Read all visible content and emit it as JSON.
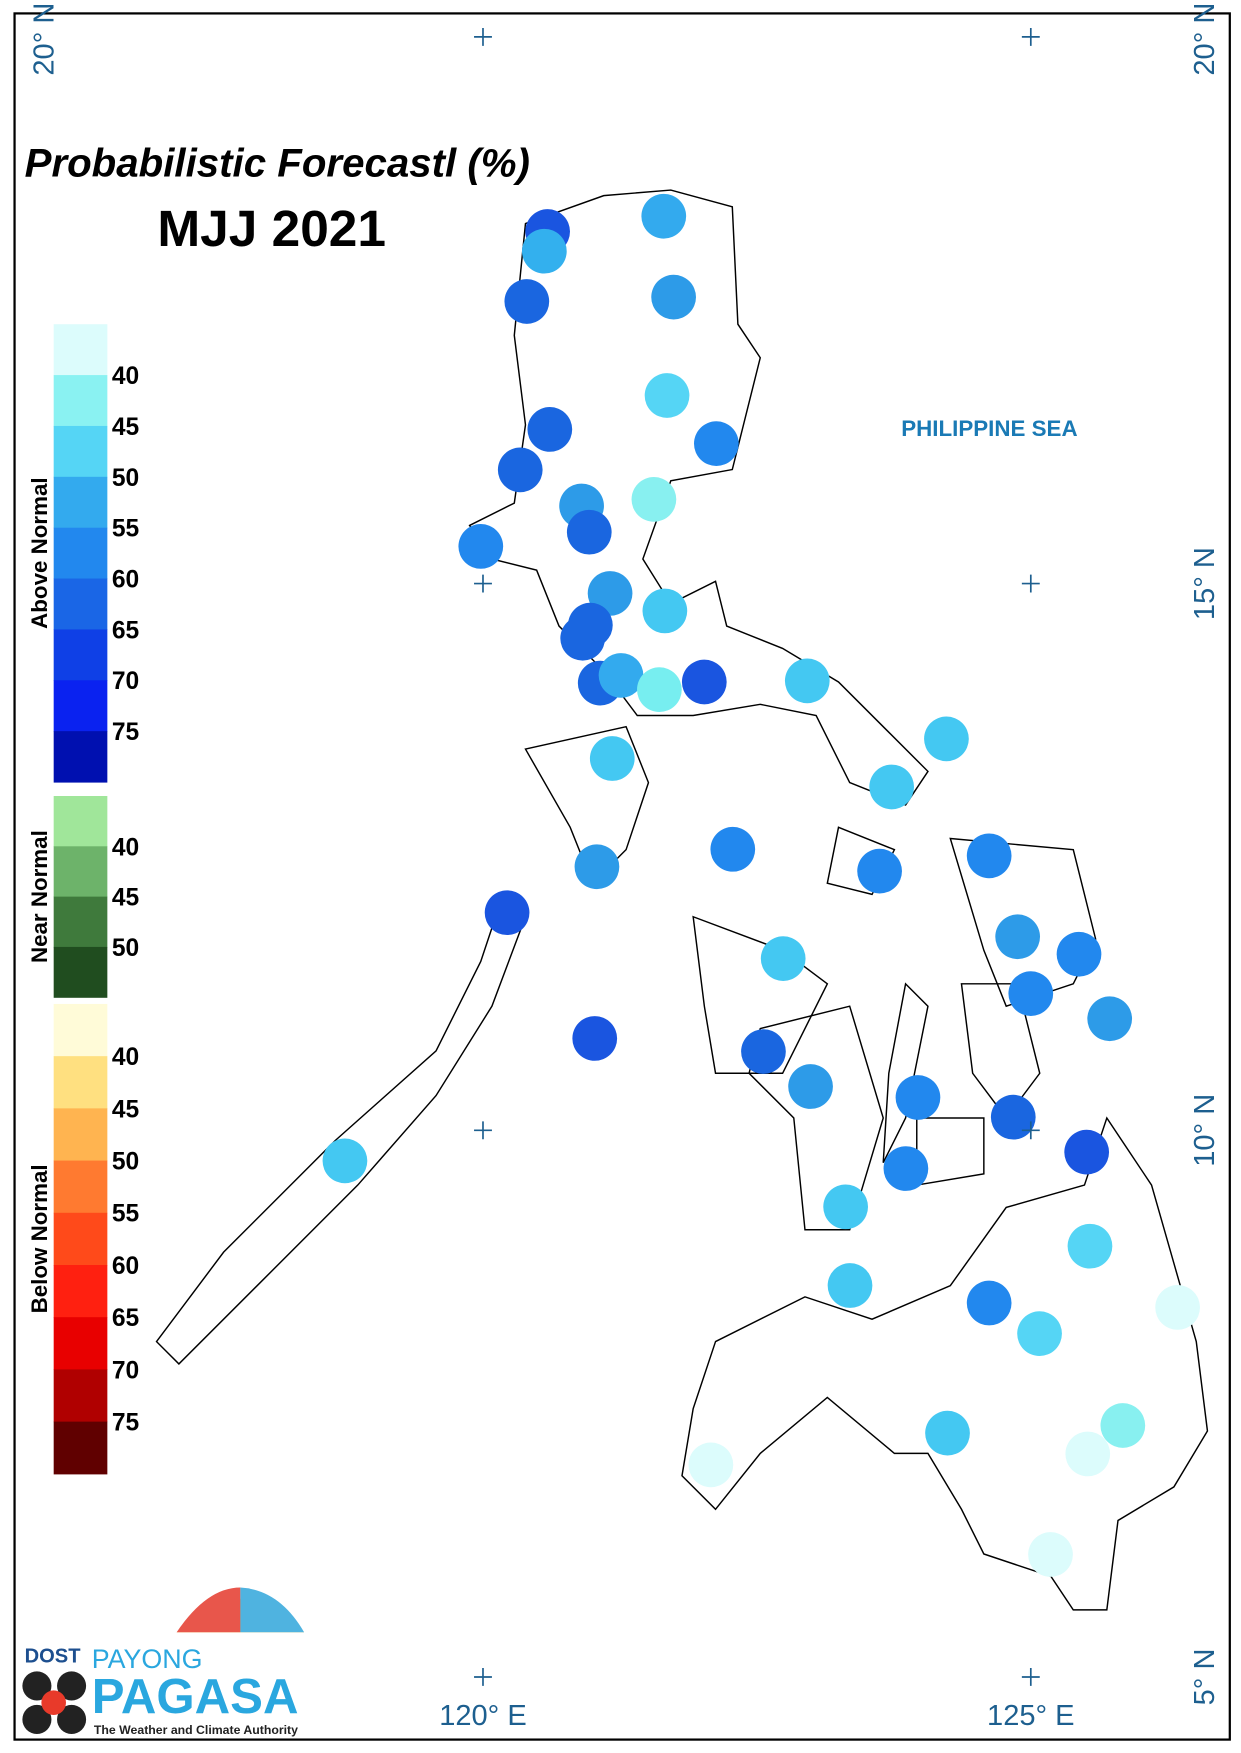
{
  "title": "Probabilistic Forecastl (%)",
  "period": "MJJ 2021",
  "sea_label": "PHILIPPINE SEA",
  "map": {
    "lonticks": [
      {
        "value": 120,
        "label": "120° E"
      },
      {
        "value": 125,
        "label": "125° E"
      }
    ],
    "latticks": [
      {
        "value": 20,
        "label": "20° N"
      },
      {
        "value": 15,
        "label": "15° N"
      },
      {
        "value": 10,
        "label": "10° N"
      },
      {
        "value": 5,
        "label": "5° N"
      }
    ],
    "stations": [
      {
        "lon": 120.59,
        "lat": 18.22,
        "color": "#1a55e0"
      },
      {
        "lon": 120.56,
        "lat": 18.04,
        "color": "#33b0ee"
      },
      {
        "lon": 121.65,
        "lat": 18.36,
        "color": "#33aaee"
      },
      {
        "lon": 120.4,
        "lat": 17.58,
        "color": "#1a66e0"
      },
      {
        "lon": 121.74,
        "lat": 17.62,
        "color": "#2d9be8"
      },
      {
        "lon": 121.68,
        "lat": 16.72,
        "color": "#55d5f5"
      },
      {
        "lon": 120.61,
        "lat": 16.41,
        "color": "#1a66e0"
      },
      {
        "lon": 122.13,
        "lat": 16.28,
        "color": "#2288ee"
      },
      {
        "lon": 120.34,
        "lat": 16.04,
        "color": "#1a66e0"
      },
      {
        "lon": 120.9,
        "lat": 15.71,
        "color": "#2d9be8"
      },
      {
        "lon": 121.56,
        "lat": 15.77,
        "color": "#88f0f0"
      },
      {
        "lon": 120.97,
        "lat": 15.47,
        "color": "#1a66e0"
      },
      {
        "lon": 119.98,
        "lat": 15.34,
        "color": "#2288ee"
      },
      {
        "lon": 121.16,
        "lat": 14.91,
        "color": "#2d9be8"
      },
      {
        "lon": 121.66,
        "lat": 14.75,
        "color": "#44c8f2"
      },
      {
        "lon": 120.98,
        "lat": 14.62,
        "color": "#1a66e0"
      },
      {
        "lon": 120.91,
        "lat": 14.5,
        "color": "#1a66e0"
      },
      {
        "lon": 121.07,
        "lat": 14.09,
        "color": "#1a66e0"
      },
      {
        "lon": 121.26,
        "lat": 14.16,
        "color": "#33aaee"
      },
      {
        "lon": 121.61,
        "lat": 14.03,
        "color": "#77eef0"
      },
      {
        "lon": 122.02,
        "lat": 14.1,
        "color": "#1a55e0"
      },
      {
        "lon": 122.96,
        "lat": 14.11,
        "color": "#44c8f2"
      },
      {
        "lon": 124.23,
        "lat": 13.58,
        "color": "#44c8f2"
      },
      {
        "lon": 121.18,
        "lat": 13.4,
        "color": "#44c8f2"
      },
      {
        "lon": 123.73,
        "lat": 13.14,
        "color": "#44c8f2"
      },
      {
        "lon": 122.28,
        "lat": 12.57,
        "color": "#2288ee"
      },
      {
        "lon": 121.04,
        "lat": 12.41,
        "color": "#2d9be8"
      },
      {
        "lon": 123.62,
        "lat": 12.37,
        "color": "#2288ee"
      },
      {
        "lon": 124.62,
        "lat": 12.51,
        "color": "#2288ee"
      },
      {
        "lon": 120.22,
        "lat": 11.99,
        "color": "#1a55e0"
      },
      {
        "lon": 124.88,
        "lat": 11.77,
        "color": "#2d9be8"
      },
      {
        "lon": 125.44,
        "lat": 11.61,
        "color": "#2288ee"
      },
      {
        "lon": 122.74,
        "lat": 11.57,
        "color": "#44c8f2"
      },
      {
        "lon": 125.0,
        "lat": 11.25,
        "color": "#2288ee"
      },
      {
        "lon": 125.72,
        "lat": 11.02,
        "color": "#2d9be8"
      },
      {
        "lon": 121.02,
        "lat": 10.84,
        "color": "#1a55e0"
      },
      {
        "lon": 122.56,
        "lat": 10.72,
        "color": "#1a66e0"
      },
      {
        "lon": 122.99,
        "lat": 10.4,
        "color": "#2d9be8"
      },
      {
        "lon": 123.97,
        "lat": 10.3,
        "color": "#2288ee"
      },
      {
        "lon": 124.84,
        "lat": 10.12,
        "color": "#1a66e0"
      },
      {
        "lon": 125.51,
        "lat": 9.8,
        "color": "#1a55e0"
      },
      {
        "lon": 123.86,
        "lat": 9.65,
        "color": "#2288ee"
      },
      {
        "lon": 118.74,
        "lat": 9.72,
        "color": "#44c8f2"
      },
      {
        "lon": 123.31,
        "lat": 9.3,
        "color": "#44c8f2"
      },
      {
        "lon": 125.54,
        "lat": 8.94,
        "color": "#55d5f5"
      },
      {
        "lon": 123.35,
        "lat": 8.58,
        "color": "#44c8f2"
      },
      {
        "lon": 124.62,
        "lat": 8.42,
        "color": "#2288ee"
      },
      {
        "lon": 125.08,
        "lat": 8.14,
        "color": "#55d5f5"
      },
      {
        "lon": 126.34,
        "lat": 8.38,
        "color": "#dcfcfc"
      },
      {
        "lon": 124.24,
        "lat": 7.23,
        "color": "#44c8f2"
      },
      {
        "lon": 125.84,
        "lat": 7.3,
        "color": "#88f0f0"
      },
      {
        "lon": 125.52,
        "lat": 7.04,
        "color": "#dcfcfc"
      },
      {
        "lon": 122.08,
        "lat": 6.94,
        "color": "#dcfcfc"
      },
      {
        "lon": 125.18,
        "lat": 6.12,
        "color": "#dcfcfc"
      }
    ]
  },
  "legend": [
    {
      "name": "Above Normal",
      "colors": [
        "#dcfcfc",
        "#8af2f2",
        "#55d5f5",
        "#33aaee",
        "#2288ee",
        "#1a66e6",
        "#0f40e6",
        "#0a22f0",
        "#0010b0"
      ],
      "labels": [
        40,
        45,
        50,
        55,
        60,
        65,
        70,
        75
      ]
    },
    {
      "name": "Near Normal",
      "colors": [
        "#a0e69a",
        "#6db36a",
        "#3f7a3c",
        "#204d1f"
      ],
      "labels": [
        40,
        45,
        50
      ]
    },
    {
      "name": "Below Normal",
      "colors": [
        "#fffbd8",
        "#ffe080",
        "#ffb450",
        "#ff7a30",
        "#ff4a1a",
        "#ff2010",
        "#e80000",
        "#b00000",
        "#600000"
      ],
      "labels": [
        40,
        45,
        50,
        55,
        60,
        65,
        70,
        75
      ]
    }
  ],
  "logo": {
    "agency": "DOST",
    "brand_top": "PAYONG",
    "brand": "PAGASA",
    "tagline": "The Weather and Climate Authority"
  }
}
